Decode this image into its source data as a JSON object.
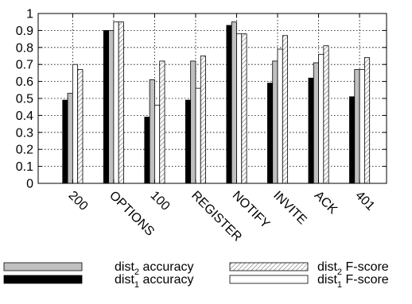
{
  "chart_data": {
    "type": "bar",
    "categories": [
      "200",
      "OPTIONS",
      "100",
      "REGISTER",
      "NOTIFY",
      "INVITE",
      "ACK",
      "401"
    ],
    "series": [
      {
        "name_main": "dist",
        "name_sub": "1",
        "name_rest": " accuracy",
        "style": "black",
        "values": [
          0.49,
          0.9,
          0.39,
          0.49,
          0.93,
          0.59,
          0.62,
          0.51
        ]
      },
      {
        "name_main": "dist",
        "name_sub": "2",
        "name_rest": " accuracy",
        "style": "gray",
        "values": [
          0.53,
          0.9,
          0.61,
          0.72,
          0.95,
          0.72,
          0.71,
          0.67
        ]
      },
      {
        "name_main": "dist",
        "name_sub": "1",
        "name_rest": " F-score",
        "style": "white",
        "values": [
          0.7,
          0.95,
          0.46,
          0.56,
          0.88,
          0.79,
          0.76,
          0.67
        ]
      },
      {
        "name_main": "dist",
        "name_sub": "2",
        "name_rest": " F-score",
        "style": "hatched",
        "values": [
          0.67,
          0.95,
          0.72,
          0.75,
          0.88,
          0.87,
          0.81,
          0.74
        ]
      }
    ],
    "ylim": [
      0,
      1
    ],
    "yticks": [
      "0",
      "0.1",
      "0.2",
      "0.3",
      "0.4",
      "0.5",
      "0.6",
      "0.7",
      "0.8",
      "0.9",
      "1"
    ],
    "grid": true,
    "legend_position": "bottom",
    "colors": {
      "black": "#000000",
      "gray": "#c0c0c0",
      "white": "#ffffff",
      "hatched": "#808080"
    }
  }
}
